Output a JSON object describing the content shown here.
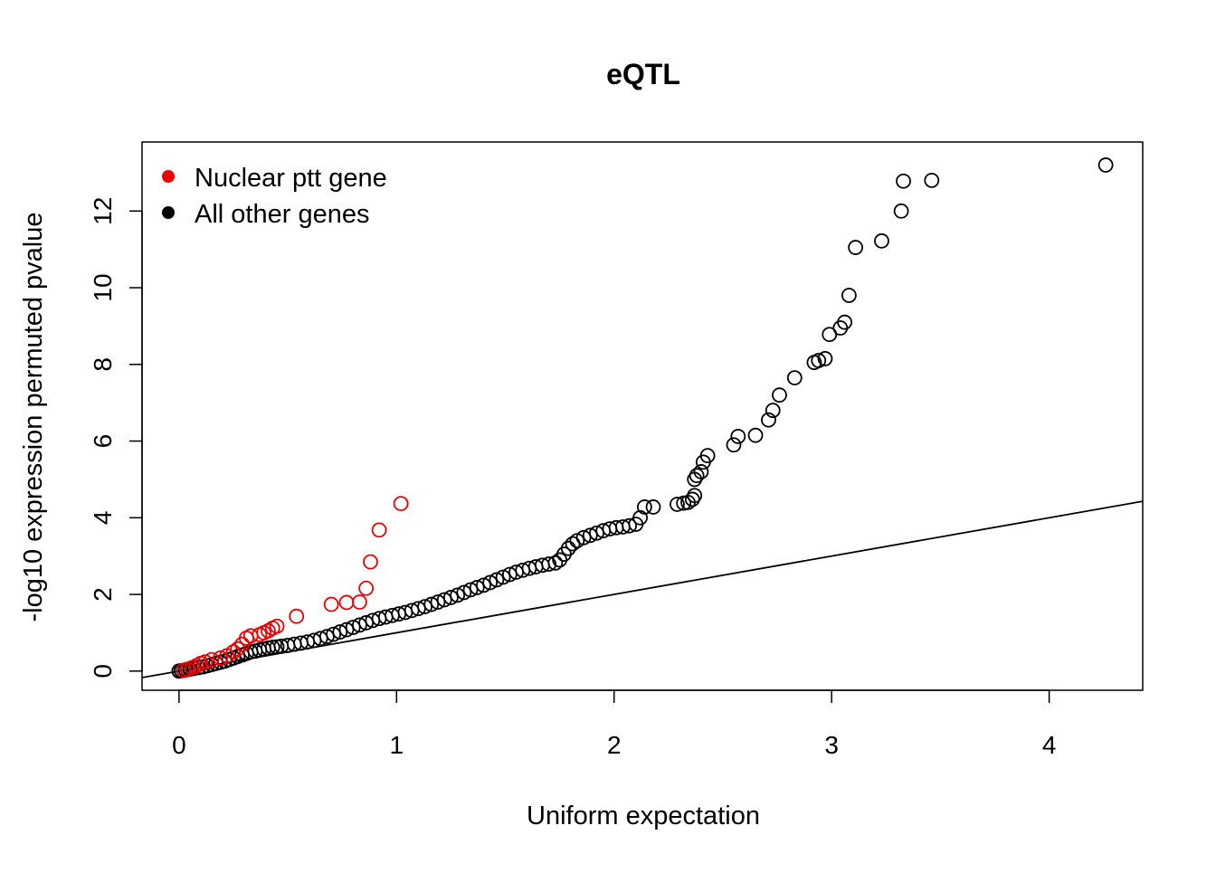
{
  "chart_data": {
    "type": "scatter",
    "title": "eQTL",
    "xlabel": "Uniform expectation",
    "ylabel": "-log10 expression permuted pvalue",
    "xlim": [
      -0.17,
      4.43
    ],
    "ylim": [
      -0.5,
      13.8
    ],
    "x_ticks": [
      0,
      1,
      2,
      3,
      4
    ],
    "y_ticks": [
      0,
      2,
      4,
      6,
      8,
      10,
      12
    ],
    "x_tick_labels": [
      "0",
      "1",
      "2",
      "3",
      "4"
    ],
    "y_tick_labels": [
      "0",
      "2",
      "4",
      "6",
      "8",
      "10",
      "12"
    ],
    "reference_line": {
      "label": "y = x",
      "intercept": 0,
      "slope": 1
    },
    "legend": {
      "position": "top-left",
      "entries": [
        {
          "label": "Nuclear ptt gene",
          "color": "#ee0000"
        },
        {
          "label": "All other genes",
          "color": "#000000"
        }
      ]
    },
    "series": [
      {
        "name": "All other genes",
        "color": "#000000",
        "marker": "open-circle",
        "points": [
          [
            0.0,
            0.0
          ],
          [
            0.01,
            0.01
          ],
          [
            0.02,
            0.02
          ],
          [
            0.03,
            0.03
          ],
          [
            0.04,
            0.04
          ],
          [
            0.05,
            0.05
          ],
          [
            0.07,
            0.07
          ],
          [
            0.09,
            0.09
          ],
          [
            0.11,
            0.11
          ],
          [
            0.13,
            0.14
          ],
          [
            0.15,
            0.17
          ],
          [
            0.17,
            0.2
          ],
          [
            0.19,
            0.23
          ],
          [
            0.21,
            0.26
          ],
          [
            0.23,
            0.3
          ],
          [
            0.25,
            0.34
          ],
          [
            0.27,
            0.38
          ],
          [
            0.29,
            0.42
          ],
          [
            0.31,
            0.46
          ],
          [
            0.33,
            0.5
          ],
          [
            0.35,
            0.52
          ],
          [
            0.37,
            0.55
          ],
          [
            0.39,
            0.57
          ],
          [
            0.41,
            0.6
          ],
          [
            0.43,
            0.62
          ],
          [
            0.45,
            0.63
          ],
          [
            0.47,
            0.65
          ],
          [
            0.5,
            0.67
          ],
          [
            0.53,
            0.7
          ],
          [
            0.56,
            0.73
          ],
          [
            0.59,
            0.76
          ],
          [
            0.62,
            0.8
          ],
          [
            0.65,
            0.85
          ],
          [
            0.68,
            0.9
          ],
          [
            0.71,
            0.96
          ],
          [
            0.74,
            1.02
          ],
          [
            0.77,
            1.08
          ],
          [
            0.8,
            1.14
          ],
          [
            0.83,
            1.2
          ],
          [
            0.86,
            1.26
          ],
          [
            0.89,
            1.32
          ],
          [
            0.92,
            1.37
          ],
          [
            0.95,
            1.41
          ],
          [
            0.98,
            1.45
          ],
          [
            1.01,
            1.49
          ],
          [
            1.04,
            1.53
          ],
          [
            1.07,
            1.58
          ],
          [
            1.1,
            1.63
          ],
          [
            1.13,
            1.68
          ],
          [
            1.16,
            1.74
          ],
          [
            1.19,
            1.8
          ],
          [
            1.22,
            1.86
          ],
          [
            1.25,
            1.92
          ],
          [
            1.28,
            1.98
          ],
          [
            1.31,
            2.05
          ],
          [
            1.34,
            2.12
          ],
          [
            1.37,
            2.18
          ],
          [
            1.4,
            2.24
          ],
          [
            1.43,
            2.31
          ],
          [
            1.46,
            2.38
          ],
          [
            1.49,
            2.45
          ],
          [
            1.52,
            2.52
          ],
          [
            1.55,
            2.58
          ],
          [
            1.58,
            2.63
          ],
          [
            1.61,
            2.68
          ],
          [
            1.64,
            2.72
          ],
          [
            1.67,
            2.76
          ],
          [
            1.7,
            2.79
          ],
          [
            1.73,
            2.82
          ],
          [
            1.75,
            2.9
          ],
          [
            1.77,
            3.05
          ],
          [
            1.79,
            3.2
          ],
          [
            1.81,
            3.32
          ],
          [
            1.83,
            3.4
          ],
          [
            1.86,
            3.48
          ],
          [
            1.89,
            3.54
          ],
          [
            1.92,
            3.6
          ],
          [
            1.95,
            3.66
          ],
          [
            1.98,
            3.71
          ],
          [
            2.01,
            3.74
          ],
          [
            2.04,
            3.76
          ],
          [
            2.07,
            3.79
          ],
          [
            2.1,
            3.83
          ],
          [
            2.12,
            4.0
          ],
          [
            2.14,
            4.28
          ],
          [
            2.18,
            4.28
          ],
          [
            2.29,
            4.35
          ],
          [
            2.32,
            4.38
          ],
          [
            2.34,
            4.4
          ],
          [
            2.36,
            4.48
          ],
          [
            2.37,
            4.58
          ],
          [
            2.37,
            5.0
          ],
          [
            2.38,
            5.1
          ],
          [
            2.4,
            5.2
          ],
          [
            2.41,
            5.45
          ],
          [
            2.43,
            5.62
          ],
          [
            2.55,
            5.9
          ],
          [
            2.57,
            6.12
          ],
          [
            2.65,
            6.15
          ],
          [
            2.71,
            6.55
          ],
          [
            2.73,
            6.8
          ],
          [
            2.76,
            7.2
          ],
          [
            2.83,
            7.65
          ],
          [
            2.92,
            8.05
          ],
          [
            2.94,
            8.1
          ],
          [
            2.97,
            8.15
          ],
          [
            2.99,
            8.78
          ],
          [
            3.04,
            8.95
          ],
          [
            3.06,
            9.1
          ],
          [
            3.08,
            9.8
          ],
          [
            3.11,
            11.05
          ],
          [
            3.23,
            11.22
          ],
          [
            3.32,
            12.0
          ],
          [
            3.33,
            12.78
          ],
          [
            3.46,
            12.8
          ],
          [
            4.26,
            13.2
          ]
        ]
      },
      {
        "name": "Nuclear ptt gene",
        "color": "#ee0000",
        "marker": "open-circle",
        "points": [
          [
            0.02,
            0.02
          ],
          [
            0.04,
            0.05
          ],
          [
            0.06,
            0.09
          ],
          [
            0.08,
            0.14
          ],
          [
            0.1,
            0.2
          ],
          [
            0.12,
            0.24
          ],
          [
            0.15,
            0.3
          ],
          [
            0.19,
            0.34
          ],
          [
            0.22,
            0.4
          ],
          [
            0.25,
            0.5
          ],
          [
            0.27,
            0.58
          ],
          [
            0.29,
            0.7
          ],
          [
            0.31,
            0.86
          ],
          [
            0.33,
            0.92
          ],
          [
            0.37,
            0.95
          ],
          [
            0.39,
            1.0
          ],
          [
            0.41,
            1.05
          ],
          [
            0.43,
            1.12
          ],
          [
            0.45,
            1.17
          ],
          [
            0.54,
            1.43
          ],
          [
            0.7,
            1.74
          ],
          [
            0.77,
            1.79
          ],
          [
            0.83,
            1.8
          ],
          [
            0.86,
            2.16
          ],
          [
            0.88,
            2.85
          ],
          [
            0.92,
            3.68
          ],
          [
            1.02,
            4.37
          ]
        ]
      }
    ]
  }
}
